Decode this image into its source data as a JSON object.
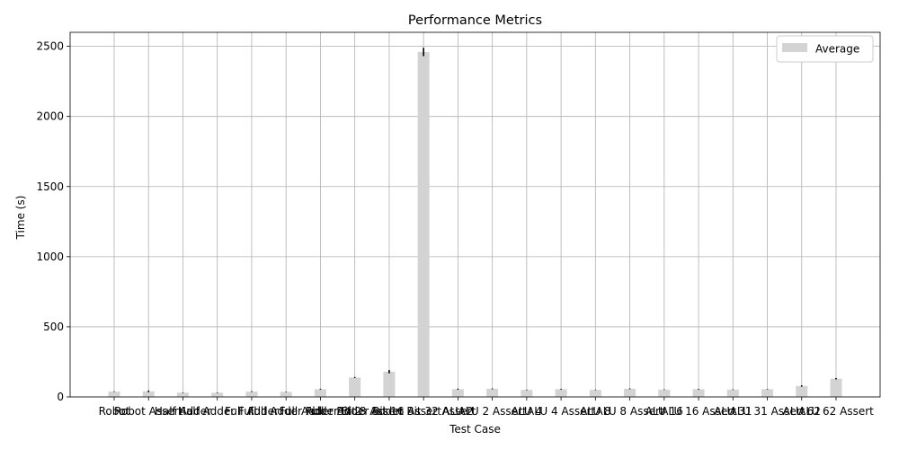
{
  "chart_data": {
    "type": "bar",
    "title": "Performance Metrics",
    "xlabel": "Test Case",
    "ylabel": "Time (s)",
    "ylim": [
      0,
      2600
    ],
    "yticks": [
      0,
      500,
      1000,
      1500,
      2000,
      2500
    ],
    "grid": true,
    "legend_position": "top-right",
    "bar_color": "#d3d3d3",
    "error_color": "#000000",
    "categories": [
      "Robot",
      "Robot Assert",
      "Half Adder",
      "Half Adder Full",
      "Full Adder",
      "Full Adder Full",
      "Full Adder Bit 2",
      "Adder Bit 8 Assert",
      "Adder Bit 16 Assert",
      "Adder Bit 32 Assert",
      "ALU 2",
      "ALU 2 Assert",
      "ALU 4",
      "ALU 4 Assert",
      "ALU 8",
      "ALU 8 Assert",
      "ALU 16",
      "ALU 16 Assert",
      "ALU 31",
      "ALU 31 Assert",
      "ALU 62",
      "ALU 62 Assert"
    ],
    "series": [
      {
        "name": "Average",
        "values": [
          38,
          40,
          30,
          30,
          38,
          36,
          55,
          138,
          180,
          2460,
          55,
          58,
          50,
          55,
          50,
          58,
          52,
          55,
          52,
          55,
          78,
          130
        ],
        "errors": [
          2,
          6,
          2,
          2,
          3,
          2,
          3,
          4,
          12,
          30,
          4,
          3,
          2,
          3,
          2,
          3,
          2,
          3,
          2,
          2,
          5,
          5
        ]
      }
    ]
  }
}
